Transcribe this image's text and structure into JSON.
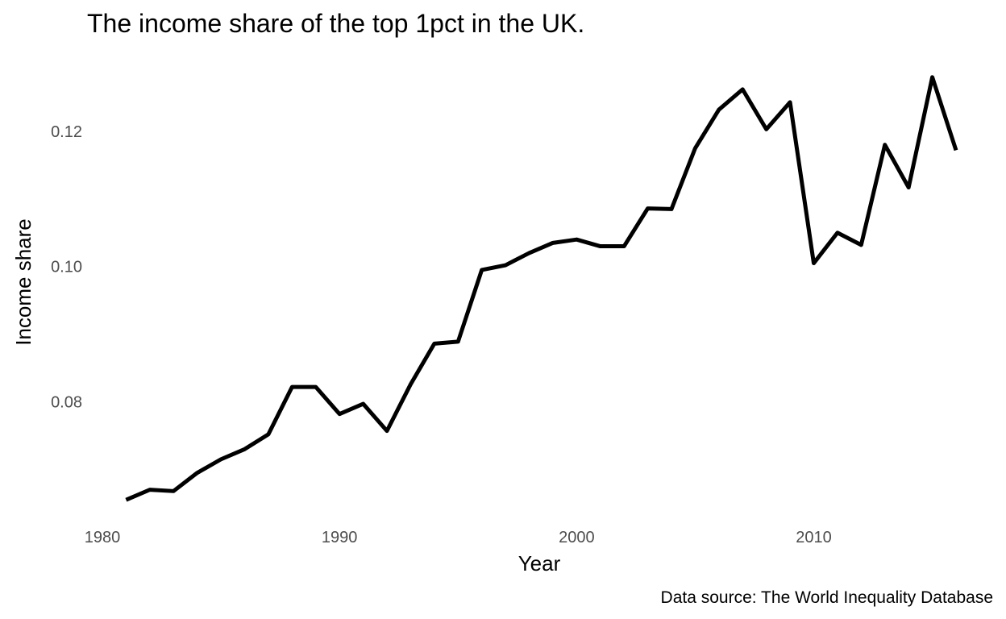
{
  "chart_data": {
    "type": "line",
    "title": "The income share of the top 1pct in the UK.",
    "xlabel": "Year",
    "ylabel": "Income share",
    "caption": "Data source: The World Inequality Database",
    "xlim": [
      1980,
      2016
    ],
    "ylim": [
      0.0635,
      0.13
    ],
    "x_ticks": [
      1980,
      1990,
      2000,
      2010
    ],
    "y_ticks": [
      0.08,
      0.1,
      0.12
    ],
    "y_tick_labels": [
      "0.08",
      "0.10",
      "0.12"
    ],
    "grid": false,
    "legend": "none",
    "line_color": "#000000",
    "series": [
      {
        "x": [
          1981,
          1982,
          1983,
          1984,
          1985,
          1986,
          1987,
          1988,
          1989,
          1990,
          1991,
          1992,
          1993,
          1994,
          1995,
          1996,
          1997,
          1998,
          1999,
          2000,
          2001,
          2002,
          2003,
          2004,
          2005,
          2006,
          2007,
          2008,
          2009,
          2010,
          2011,
          2012,
          2013,
          2014,
          2015,
          2016
        ],
        "values": [
          0.0655,
          0.067,
          0.0668,
          0.0695,
          0.0715,
          0.073,
          0.0752,
          0.0822,
          0.0822,
          0.0782,
          0.0797,
          0.0757,
          0.0826,
          0.0886,
          0.0889,
          0.0995,
          0.1002,
          0.102,
          0.1035,
          0.104,
          0.103,
          0.103,
          0.1086,
          0.1085,
          0.1175,
          0.1232,
          0.1262,
          0.1203,
          0.1243,
          0.1005,
          0.105,
          0.1032,
          0.118,
          0.1117,
          0.128,
          0.1172
        ]
      }
    ]
  }
}
